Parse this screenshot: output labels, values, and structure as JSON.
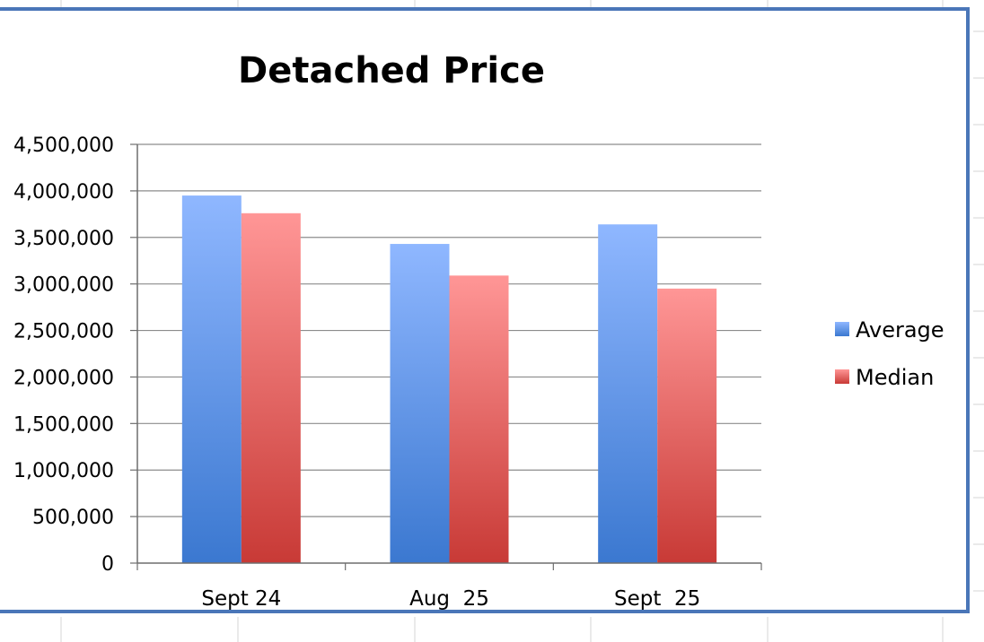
{
  "chart_data": {
    "type": "bar",
    "title": "Detached Price",
    "categories": [
      "Sept 24",
      "Aug  25",
      "Sept  25"
    ],
    "series": [
      {
        "name": "Average",
        "values": [
          3950000,
          3430000,
          3640000
        ],
        "color_top": "#8fb7ff",
        "color_bottom": "#3b78d0"
      },
      {
        "name": "Median",
        "values": [
          3760000,
          3090000,
          2950000
        ],
        "color_top": "#ff9696",
        "color_bottom": "#c83a36"
      }
    ],
    "ylim": [
      0,
      4500000
    ],
    "yticks": [
      0,
      500000,
      1000000,
      1500000,
      2000000,
      2500000,
      3000000,
      3500000,
      4000000,
      4500000
    ],
    "ytick_labels": [
      "0",
      "500,000",
      "1,000,000",
      "1,500,000",
      "2,000,000",
      "2,500,000",
      "3,000,000",
      "3,500,000",
      "4,000,000",
      "4,500,000"
    ],
    "grid": true,
    "legend_position": "right"
  }
}
